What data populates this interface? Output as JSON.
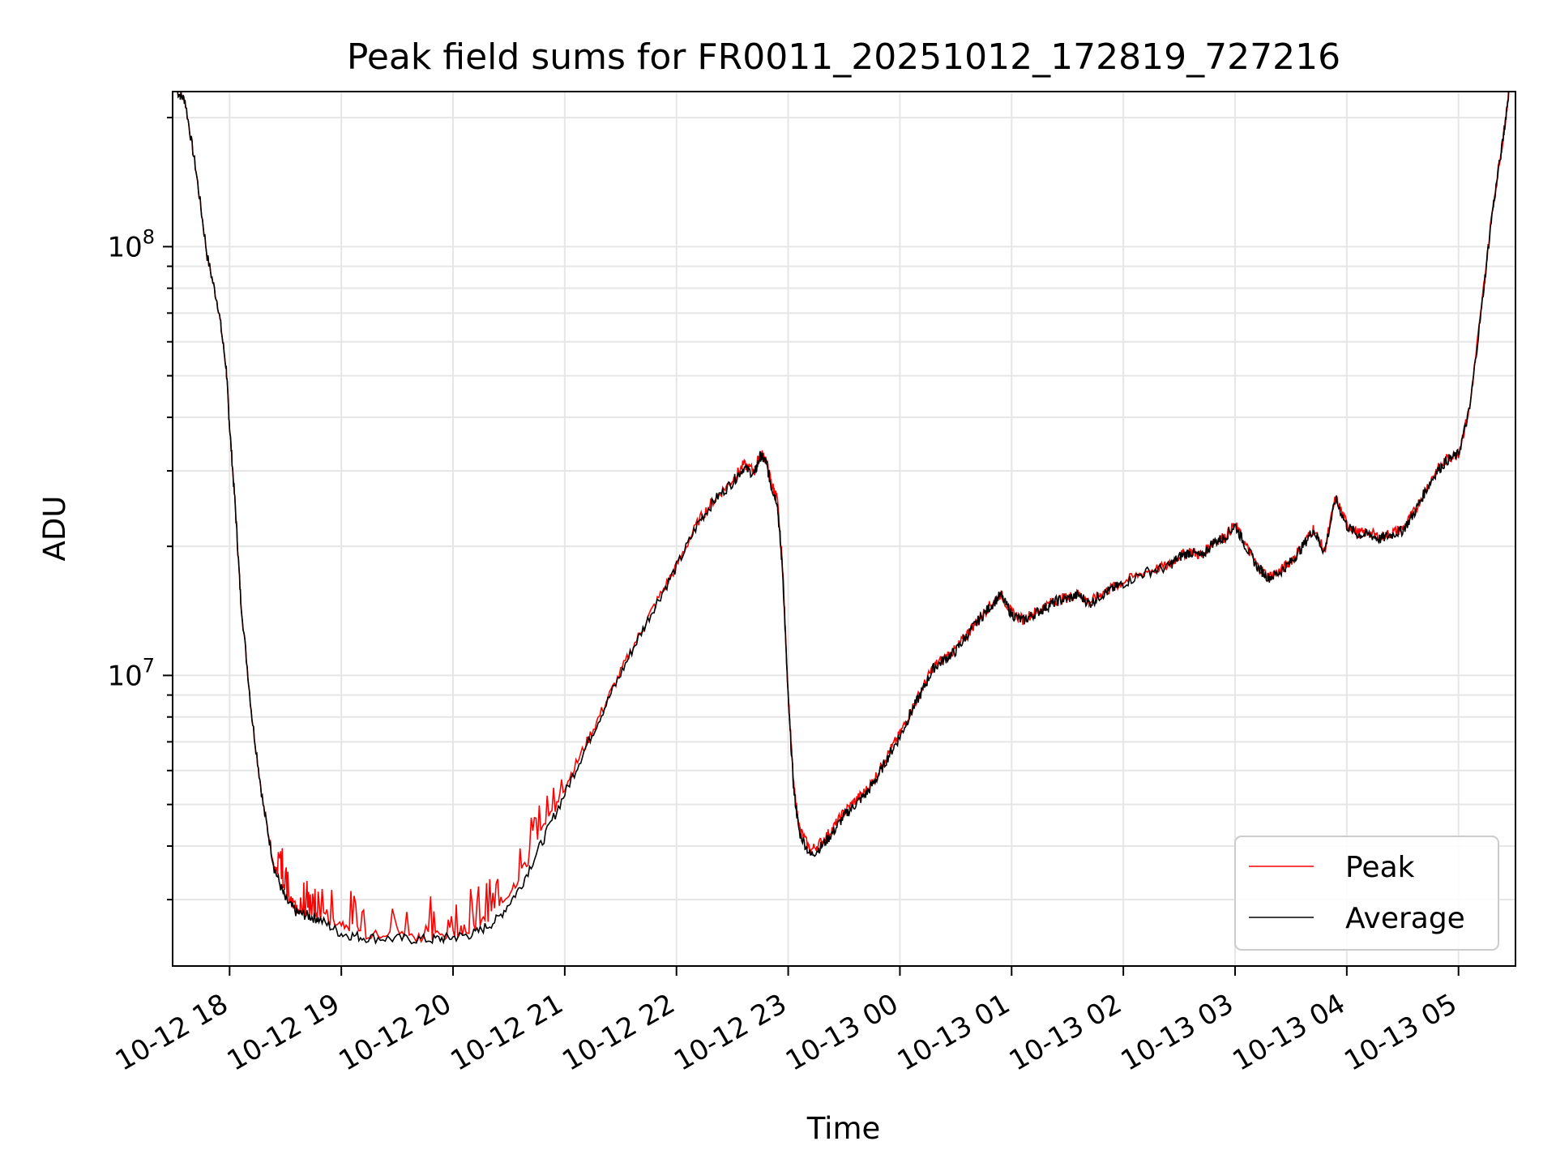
{
  "chart_data": {
    "type": "line",
    "title": "Peak field sums for FR0011_20251012_172819_727216",
    "xlabel": "Time",
    "ylabel": "ADU",
    "yscale": "log",
    "ylim": [
      2100000,
      230000000
    ],
    "xlim_hours": [
      17.49,
      29.51
    ],
    "grid": true,
    "legend_position": "lower-right",
    "x_tick_labels": [
      "10-12 18",
      "10-12 19",
      "10-12 20",
      "10-12 21",
      "10-12 22",
      "10-12 23",
      "10-13 00",
      "10-13 01",
      "10-13 02",
      "10-13 03",
      "10-13 04",
      "10-13 05"
    ],
    "x_tick_hours": [
      18,
      19,
      20,
      21,
      22,
      23,
      24,
      25,
      26,
      27,
      28,
      29
    ],
    "y_tick_labels": [
      {
        "base": "10",
        "exp": "7",
        "value": 10000000
      },
      {
        "base": "10",
        "exp": "8",
        "value": 100000000
      }
    ],
    "x_hours": [
      17.53,
      17.6,
      17.7,
      17.8,
      17.9,
      17.97,
      18.0,
      18.05,
      18.1,
      18.2,
      18.3,
      18.4,
      18.5,
      18.6,
      18.7,
      18.8,
      19.0,
      19.2,
      19.5,
      19.8,
      20.0,
      20.2,
      20.4,
      20.6,
      20.8,
      21.0,
      21.2,
      21.4,
      21.6,
      21.8,
      22.0,
      22.2,
      22.35,
      22.5,
      22.6,
      22.7,
      22.75,
      22.8,
      22.85,
      22.9,
      22.95,
      23.0,
      23.05,
      23.1,
      23.2,
      23.3,
      23.4,
      23.5,
      23.6,
      23.7,
      23.8,
      23.9,
      24.0,
      24.1,
      24.2,
      24.3,
      24.4,
      24.5,
      24.6,
      24.7,
      24.8,
      24.9,
      25.0,
      25.1,
      25.2,
      25.3,
      25.4,
      25.5,
      25.6,
      25.7,
      25.8,
      25.9,
      26.0,
      26.2,
      26.4,
      26.5,
      26.6,
      26.7,
      26.8,
      26.9,
      27.0,
      27.1,
      27.2,
      27.3,
      27.4,
      27.5,
      27.6,
      27.7,
      27.8,
      27.9,
      28.0,
      28.1,
      28.2,
      28.3,
      28.4,
      28.5,
      28.6,
      28.7,
      28.8,
      28.9,
      29.0,
      29.1,
      29.2,
      29.3,
      29.4,
      29.45
    ],
    "series": [
      {
        "name": "Peak",
        "color": "#ff0000",
        "values": [
          230000000,
          220000000,
          150000000,
          95000000,
          72000000,
          52000000,
          38000000,
          25000000,
          15000000,
          8000000,
          5000000,
          3600000,
          3100000,
          2850000,
          2800000,
          2750000,
          2650000,
          2500000,
          2480000,
          2450000,
          2500000,
          2600000,
          2850000,
          3400000,
          4300000,
          5500000,
          7000000,
          9000000,
          11500000,
          14500000,
          18000000,
          23000000,
          26000000,
          28500000,
          31000000,
          30000000,
          33000000,
          32000000,
          28000000,
          26000000,
          18000000,
          9000000,
          5500000,
          4400000,
          3900000,
          4100000,
          4400000,
          4800000,
          5100000,
          5400000,
          5900000,
          6600000,
          7300000,
          8300000,
          9300000,
          10500000,
          11000000,
          11500000,
          12500000,
          13500000,
          14500000,
          15500000,
          14000000,
          13500000,
          14000000,
          14500000,
          15000000,
          15200000,
          15500000,
          14800000,
          15500000,
          16000000,
          16500000,
          17500000,
          18000000,
          19000000,
          19500000,
          19000000,
          20500000,
          21000000,
          22500000,
          20000000,
          18000000,
          17000000,
          17500000,
          18500000,
          20000000,
          22000000,
          19500000,
          26000000,
          22500000,
          21500000,
          21500000,
          21000000,
          21500000,
          22000000,
          24000000,
          27000000,
          30000000,
          32000000,
          33000000,
          42000000,
          70000000,
          120000000,
          180000000,
          230000000
        ]
      },
      {
        "name": "Average",
        "color": "#000000",
        "values": [
          230000000,
          220000000,
          150000000,
          95000000,
          72000000,
          52000000,
          38000000,
          25000000,
          15000000,
          8000000,
          5000000,
          3550000,
          3000000,
          2800000,
          2750000,
          2700000,
          2500000,
          2450000,
          2430000,
          2420000,
          2450000,
          2500000,
          2700000,
          3200000,
          4100000,
          5300000,
          6900000,
          8900000,
          11400000,
          14400000,
          17900000,
          22800000,
          25800000,
          28200000,
          30500000,
          29500000,
          32500000,
          31500000,
          27500000,
          25500000,
          17500000,
          8800000,
          5400000,
          4300000,
          3800000,
          4000000,
          4300000,
          4700000,
          5000000,
          5300000,
          5800000,
          6500000,
          7200000,
          8200000,
          9200000,
          10400000,
          10900000,
          11400000,
          12400000,
          13400000,
          14400000,
          15400000,
          13900000,
          13400000,
          13900000,
          14400000,
          14900000,
          15100000,
          15400000,
          14700000,
          15400000,
          15900000,
          16400000,
          17400000,
          17900000,
          18900000,
          19400000,
          18900000,
          20400000,
          20900000,
          22400000,
          19900000,
          17900000,
          16900000,
          17400000,
          18400000,
          19900000,
          21900000,
          19400000,
          25800000,
          22300000,
          21300000,
          21300000,
          20800000,
          21300000,
          21800000,
          23800000,
          26800000,
          29800000,
          31800000,
          32800000,
          41800000,
          69500000,
          119000000,
          179000000,
          230000000
        ]
      }
    ]
  }
}
